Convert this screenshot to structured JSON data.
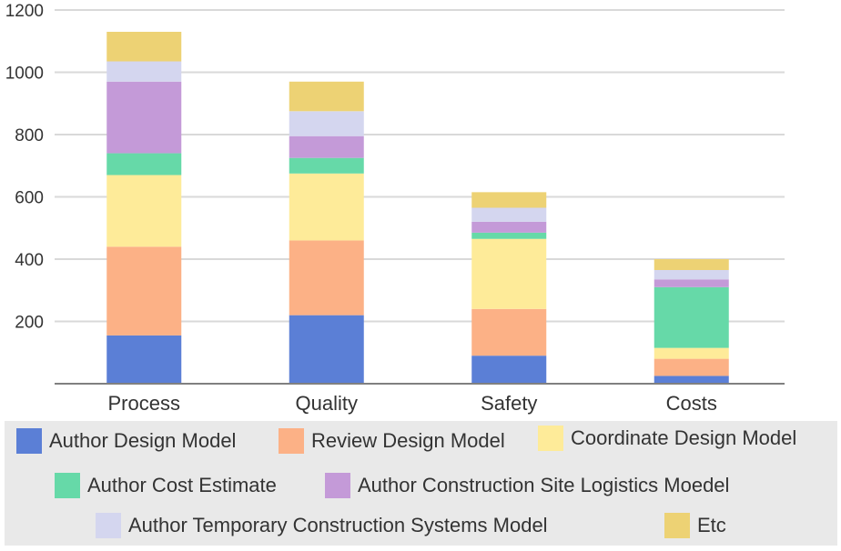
{
  "chart_data": {
    "type": "bar",
    "stacked": true,
    "categories": [
      "Process",
      "Quality",
      "Safety",
      "Costs"
    ],
    "ylim": [
      0,
      1200
    ],
    "yticks": [
      200,
      400,
      600,
      800,
      1000,
      1200
    ],
    "grid": true,
    "legend_position": "bottom",
    "series": [
      {
        "name": "Author Design Model",
        "color": "#5b7fd6",
        "values": [
          155,
          220,
          90,
          25
        ]
      },
      {
        "name": "Review Design Model",
        "color": "#fcb186",
        "values": [
          285,
          240,
          150,
          55
        ]
      },
      {
        "name": "Coordinate Design Model",
        "color": "#feeb99",
        "values": [
          230,
          215,
          225,
          35
        ]
      },
      {
        "name": "Author Cost Estimate",
        "color": "#66d9a8",
        "values": [
          70,
          50,
          20,
          195
        ]
      },
      {
        "name": "Author Construction Site Logistics Moedel",
        "color": "#c49ad8",
        "values": [
          230,
          70,
          35,
          25
        ]
      },
      {
        "name": "Author Temporary Construction Systems Model",
        "color": "#d4d6ef",
        "values": [
          65,
          80,
          45,
          30
        ]
      },
      {
        "name": "Etc",
        "color": "#edd274",
        "values": [
          95,
          95,
          50,
          35
        ]
      }
    ]
  }
}
